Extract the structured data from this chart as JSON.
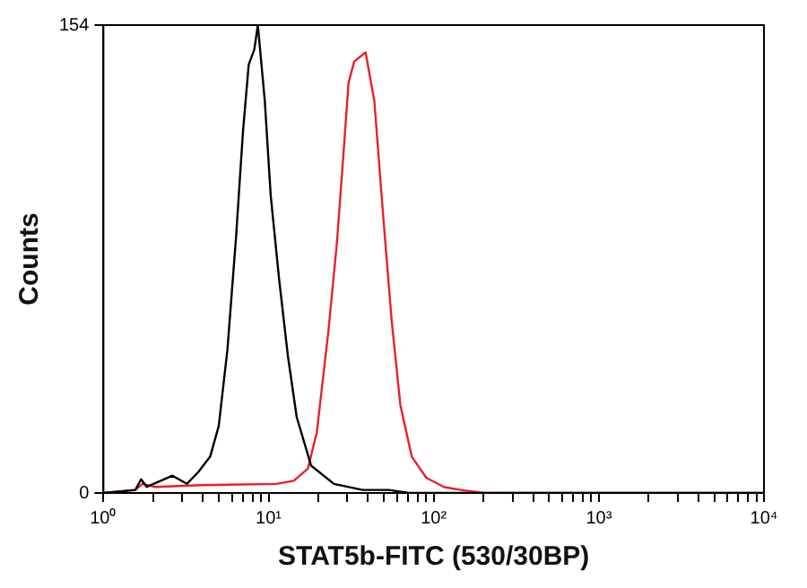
{
  "chart_data": {
    "type": "line",
    "xlabel": "STAT5b-FITC (530/30BP)",
    "ylabel": "Counts",
    "log": "x",
    "grid": false,
    "marker": "none",
    "line_style": "solid",
    "xlim": [
      1,
      10000
    ],
    "ylim": [
      0,
      154
    ],
    "yticks": [
      0,
      154
    ],
    "xticks": [
      {
        "value": 1,
        "label": "10⁰"
      },
      {
        "value": 2,
        "label": null
      },
      {
        "value": 3,
        "label": null
      },
      {
        "value": 4,
        "label": null
      },
      {
        "value": 5,
        "label": null
      },
      {
        "value": 6,
        "label": null
      },
      {
        "value": 7,
        "label": null
      },
      {
        "value": 8,
        "label": null
      },
      {
        "value": 9,
        "label": null
      },
      {
        "value": 10,
        "label": "10¹"
      },
      {
        "value": 20,
        "label": null
      },
      {
        "value": 30,
        "label": null
      },
      {
        "value": 40,
        "label": null
      },
      {
        "value": 50,
        "label": null
      },
      {
        "value": 60,
        "label": null
      },
      {
        "value": 70,
        "label": null
      },
      {
        "value": 80,
        "label": null
      },
      {
        "value": 90,
        "label": null
      },
      {
        "value": 100,
        "label": "10²"
      },
      {
        "value": 200,
        "label": null
      },
      {
        "value": 300,
        "label": null
      },
      {
        "value": 400,
        "label": null
      },
      {
        "value": 500,
        "label": null
      },
      {
        "value": 600,
        "label": null
      },
      {
        "value": 700,
        "label": null
      },
      {
        "value": 800,
        "label": null
      },
      {
        "value": 900,
        "label": null
      },
      {
        "value": 1000,
        "label": "10³"
      },
      {
        "value": 2000,
        "label": null
      },
      {
        "value": 3000,
        "label": null
      },
      {
        "value": 4000,
        "label": null
      },
      {
        "value": 5000,
        "label": null
      },
      {
        "value": 6000,
        "label": null
      },
      {
        "value": 7000,
        "label": null
      },
      {
        "value": 8000,
        "label": null
      },
      {
        "value": 9000,
        "label": null
      },
      {
        "value": 10000,
        "label": "10⁴"
      }
    ],
    "series": [
      {
        "color": "#000000",
        "x": [
          1,
          1.56,
          1.69,
          1.83,
          2.62,
          3.2,
          3.77,
          4.43,
          4.99,
          5.63,
          6.35,
          7.0,
          7.58,
          8.2,
          8.61,
          9.49,
          10.3,
          11.6,
          13.1,
          14.8,
          18.1,
          24.9,
          37.2,
          53.5,
          70.8,
          10000
        ],
        "values": [
          0,
          1,
          4.5,
          2,
          5.7,
          3,
          7,
          12,
          22,
          47,
          84,
          119,
          141,
          146,
          154,
          129,
          98,
          70,
          45,
          25,
          9,
          3,
          1,
          1,
          0,
          0
        ]
      },
      {
        "color": "#e8202a",
        "x": [
          1,
          1.56,
          1.72,
          2.06,
          3.92,
          11.1,
          14.2,
          17.3,
          19.6,
          23,
          25.9,
          28.1,
          30.5,
          33,
          38.7,
          43.7,
          49.3,
          55.6,
          62.8,
          73.6,
          90.2,
          115,
          146,
          200,
          10000
        ],
        "values": [
          0,
          1,
          3,
          2,
          2.6,
          3,
          4,
          8,
          20,
          53,
          82,
          108,
          135,
          142,
          145,
          129,
          92,
          57,
          29,
          12,
          5,
          2,
          1,
          0,
          0
        ]
      }
    ]
  }
}
